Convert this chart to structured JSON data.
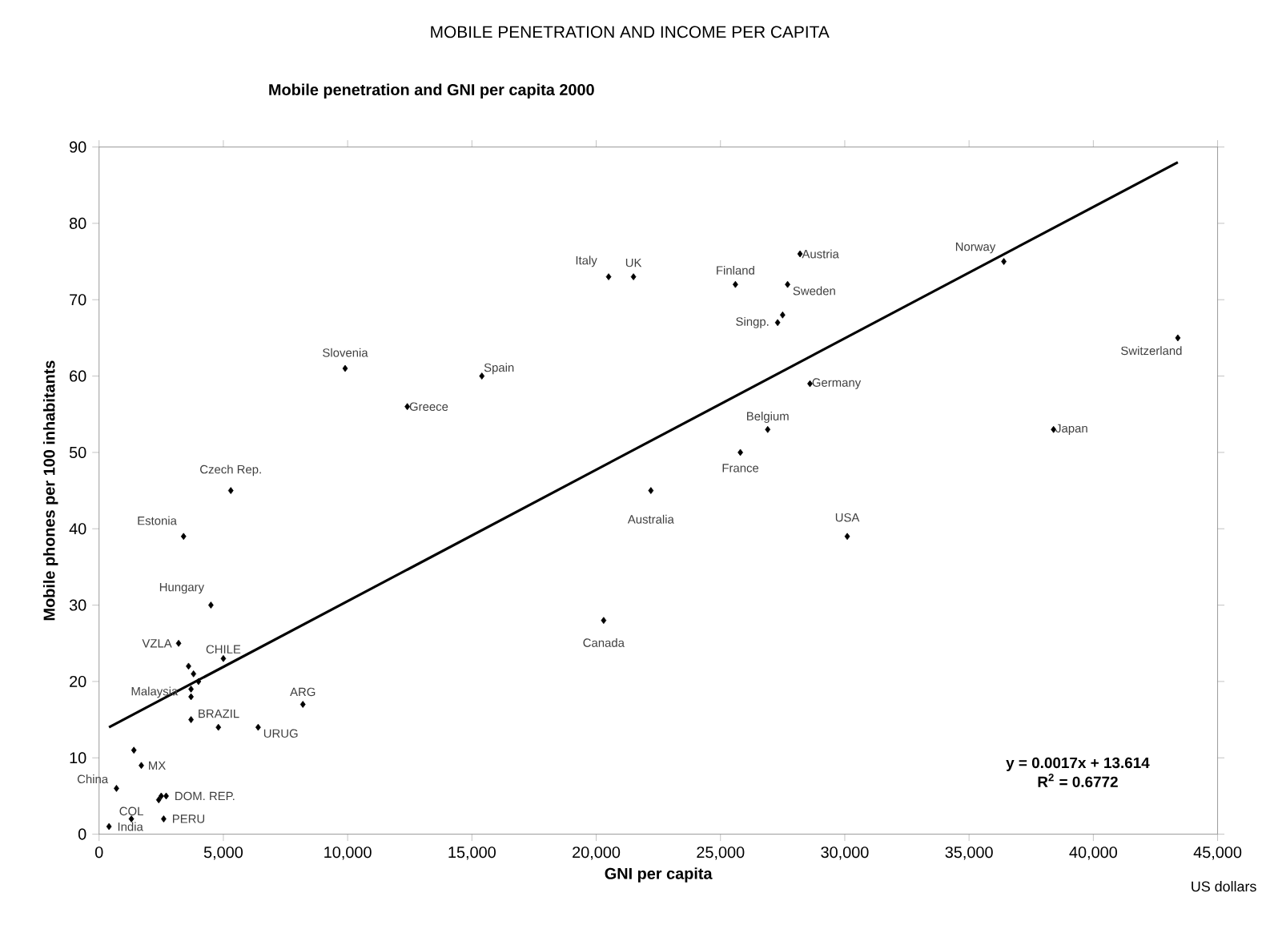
{
  "chart_data": {
    "type": "scatter",
    "title": "MOBILE PENETRATION AND INCOME PER CAPITA",
    "subtitle": "Mobile penetration and GNI per capita 2000",
    "xlabel": "GNI per capita",
    "ylabel": "Mobile phones per 100 inhabitants",
    "xlim": [
      0,
      45000
    ],
    "ylim": [
      0,
      90
    ],
    "xticks": [
      0,
      {
        "value": 5000,
        "label": "5,000"
      },
      {
        "value": 10000,
        "label": "10,000"
      },
      {
        "value": 15000,
        "label": "15,000"
      },
      {
        "value": 20000,
        "label": "20,000"
      },
      {
        "value": 25000,
        "label": "25,000"
      },
      {
        "value": 30000,
        "label": "30,000"
      },
      {
        "value": 35000,
        "label": "35,000"
      },
      {
        "value": 40000,
        "label": "40,000"
      },
      {
        "value": 45000,
        "label": "45,000"
      }
    ],
    "yticks": [
      0,
      10,
      20,
      30,
      40,
      50,
      60,
      70,
      80,
      90
    ],
    "series": [
      {
        "color": "#000000",
        "marker": "diamond",
        "x": [
          20500,
          21500,
          25600,
          28200,
          27700,
          27300,
          27500,
          36400,
          43400,
          28600,
          26900,
          38400,
          25800,
          22200,
          30100,
          20300,
          9900,
          15400,
          12400,
          5300,
          3400,
          4500,
          3200,
          5000,
          3600,
          3800,
          4000,
          3700,
          3700,
          8200,
          3700,
          4800,
          6400,
          1400,
          1700,
          700,
          2500,
          2700,
          2400,
          1300,
          2600,
          400
        ],
        "values": [
          73,
          73,
          72,
          76,
          72,
          67,
          68,
          75,
          65,
          59,
          53,
          53,
          50,
          45,
          39,
          28,
          61,
          60,
          56,
          45,
          39,
          30,
          25,
          23,
          22,
          21,
          20,
          19,
          18,
          17,
          15,
          14,
          14,
          11,
          9,
          6,
          5,
          5,
          4.5,
          2,
          2,
          1
        ]
      },
      {
        "type": "line",
        "color": "#000000",
        "marker": "none",
        "line_style": "solid",
        "x": [
          400,
          43400
        ],
        "values": [
          14,
          88
        ]
      }
    ],
    "annotations": [
      {
        "text": "Italy",
        "x": 20500,
        "y": 73
      },
      {
        "text": "UK",
        "x": 21500,
        "y": 73
      },
      {
        "text": "Finland",
        "x": 25600,
        "y": 72
      },
      {
        "text": "Austria",
        "x": 28200,
        "y": 76
      },
      {
        "text": "Sweden",
        "x": 27700,
        "y": 72
      },
      {
        "text": "Singp.",
        "x": 27300,
        "y": 67
      },
      {
        "text": "Norway",
        "x": 36400,
        "y": 75
      },
      {
        "text": "Switzerland",
        "x": 43400,
        "y": 65
      },
      {
        "text": "Germany",
        "x": 28600,
        "y": 59
      },
      {
        "text": "Belgium",
        "x": 26900,
        "y": 53
      },
      {
        "text": "Japan",
        "x": 38400,
        "y": 53
      },
      {
        "text": "France",
        "x": 25800,
        "y": 50
      },
      {
        "text": "Australia",
        "x": 22200,
        "y": 45
      },
      {
        "text": "USA",
        "x": 30100,
        "y": 39
      },
      {
        "text": "Canada",
        "x": 20300,
        "y": 28
      },
      {
        "text": "Slovenia",
        "x": 9900,
        "y": 61
      },
      {
        "text": "Spain",
        "x": 15400,
        "y": 60
      },
      {
        "text": "Greece",
        "x": 12400,
        "y": 56
      },
      {
        "text": "Czech Rep.",
        "x": 5300,
        "y": 45
      },
      {
        "text": "Estonia",
        "x": 3400,
        "y": 39
      },
      {
        "text": "Hungary",
        "x": 4500,
        "y": 30
      },
      {
        "text": "VZLA",
        "x": 3200,
        "y": 25
      },
      {
        "text": "CHILE",
        "x": 5000,
        "y": 23
      },
      {
        "text": "Malaysia",
        "x": 3700,
        "y": 19
      },
      {
        "text": "ARG",
        "x": 8200,
        "y": 17
      },
      {
        "text": "BRAZIL",
        "x": 3700,
        "y": 15
      },
      {
        "text": "URUG",
        "x": 6400,
        "y": 14
      },
      {
        "text": "MX",
        "x": 1700,
        "y": 9
      },
      {
        "text": "China",
        "x": 700,
        "y": 6
      },
      {
        "text": "DOM. REP.",
        "x": 2700,
        "y": 5
      },
      {
        "text": "COL",
        "x": 1300,
        "y": 2
      },
      {
        "text": "PERU",
        "x": 2600,
        "y": 2
      },
      {
        "text": "India",
        "x": 400,
        "y": 1
      },
      "y = 0.0017x + 13.614",
      "R$^{2}$ = 0.6772",
      "US dollars"
    ]
  }
}
